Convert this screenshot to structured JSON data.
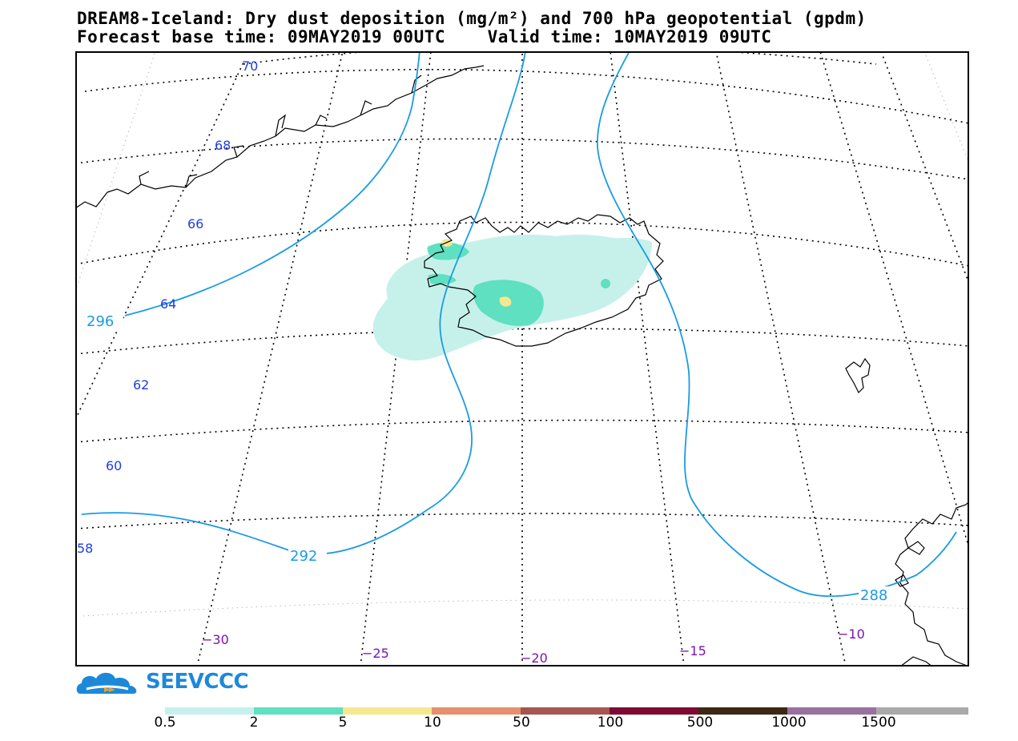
{
  "title": {
    "line1": "DREAM8-Iceland: Dry dust deposition (mg/m²) and 700 hPa geopotential (gpdm)",
    "line2": "Forecast base time: 09MAY2019 00UTC    Valid time: 10MAY2019 09UTC"
  },
  "map": {
    "latitude_labels": [
      "70",
      "68",
      "66",
      "64",
      "62",
      "60",
      "58"
    ],
    "longitude_labels": [
      "−30",
      "−25",
      "−20",
      "−15",
      "−10"
    ],
    "contour_labels": [
      "296",
      "292",
      "288"
    ],
    "colors": {
      "graticule": "#000000",
      "coastline": "#000000",
      "contour": "#1a9be6",
      "latitude_label": "#1f3fdc",
      "longitude_label": "#7a12b5"
    }
  },
  "logo": {
    "text": "SEEVCCC",
    "icon": "cloud-logo-icon"
  },
  "colorbar": {
    "colors": [
      "#c6f1ea",
      "#5fe0c0",
      "#f6e890",
      "#e69070",
      "#a85450",
      "#7e0a32",
      "#3c2814",
      "#9a70a0",
      "#aaaaaa"
    ],
    "labels": [
      "0.5",
      "2",
      "5",
      "10",
      "50",
      "100",
      "500",
      "1000",
      "1500"
    ]
  }
}
